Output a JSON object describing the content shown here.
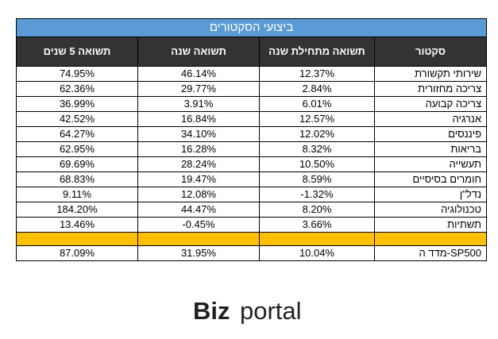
{
  "table": {
    "title": "ביצועי הסקטורים",
    "headers": [
      "סקטור",
      "תשואה מתחילת שנה",
      "תשואה שנה",
      "תשואה 5 שנים"
    ],
    "rows": [
      {
        "sector": "שירותי תקשורת",
        "ytd": "12.37%",
        "year": "46.14%",
        "five_year": "74.95%"
      },
      {
        "sector": "צריכה מחזורית",
        "ytd": "2.84%",
        "year": "29.77%",
        "five_year": "62.36%"
      },
      {
        "sector": "צריכה קבועה",
        "ytd": "6.01%",
        "year": "3.91%",
        "five_year": "36.99%"
      },
      {
        "sector": "אנרגיה",
        "ytd": "12.57%",
        "year": "16.84%",
        "five_year": "42.52%"
      },
      {
        "sector": "פיננסים",
        "ytd": "12.02%",
        "year": "34.10%",
        "five_year": "64.27%"
      },
      {
        "sector": "בריאות",
        "ytd": "8.32%",
        "year": "16.28%",
        "five_year": "62.95%"
      },
      {
        "sector": "תעשייה",
        "ytd": "10.50%",
        "year": "28.24%",
        "five_year": "69.69%"
      },
      {
        "sector": "חומרים בסיסיים",
        "ytd": "8.59%",
        "year": "19.47%",
        "five_year": "68.83%"
      },
      {
        "sector": "נדל\"ן",
        "ytd": "-1.32%",
        "year": "12.08%",
        "five_year": "9.11%"
      },
      {
        "sector": "טכנולוגיה",
        "ytd": "8.20%",
        "year": "44.47%",
        "five_year": "184.20%"
      },
      {
        "sector": "תשתיות",
        "ytd": "3.66%",
        "year": "-0.45%",
        "five_year": "13.46%"
      }
    ],
    "index_row": {
      "sector": "מדד ה-SP500",
      "ytd": "10.04%",
      "year": "31.95%",
      "five_year": "87.09%"
    }
  },
  "colors": {
    "title_bg": "#5b9bd5",
    "header_bg": "#333333",
    "separator": "#ffc000"
  },
  "logo": {
    "text_bold": "Biz",
    "text_light": "portal"
  }
}
